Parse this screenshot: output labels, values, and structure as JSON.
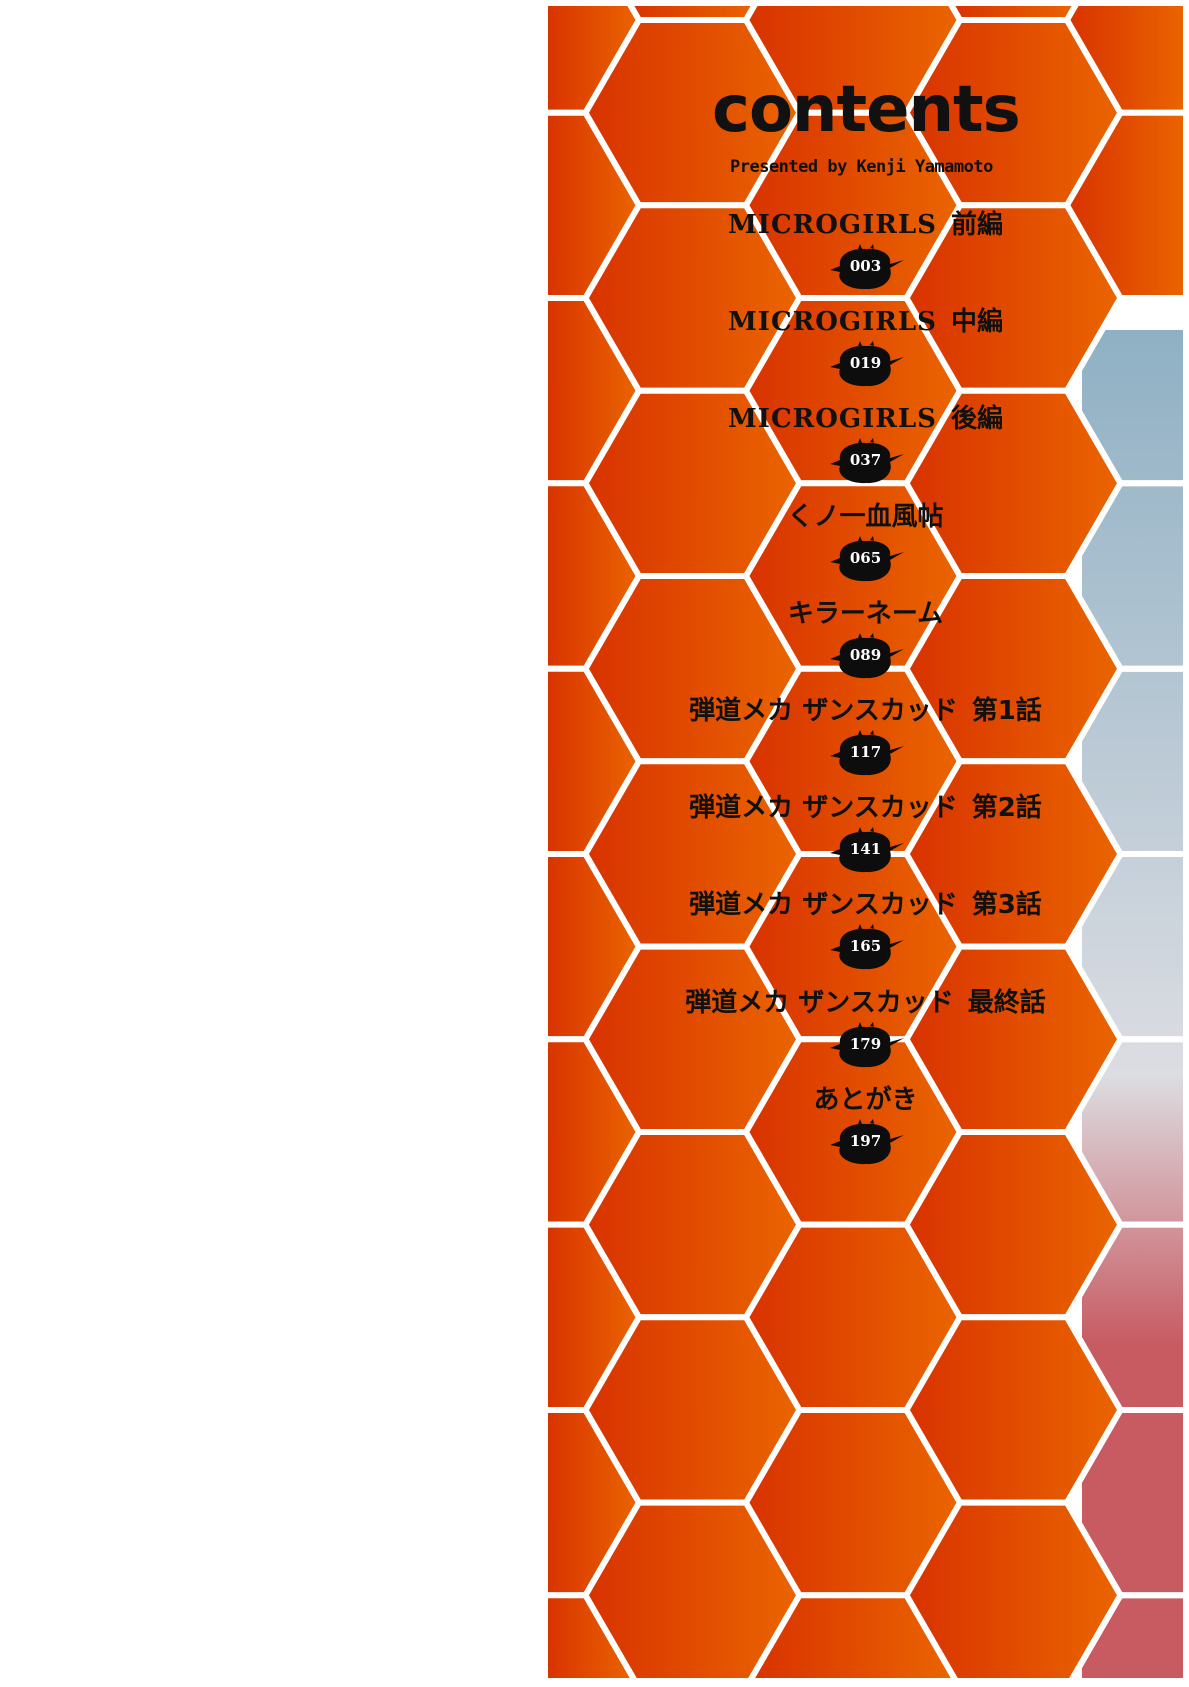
{
  "heading": "contents",
  "byline": "Presented by Kenji Yamamoto",
  "colors": {
    "orange_left": "#d83200",
    "orange_right": "#ea6500",
    "hex_lines": "#ffffff",
    "blot": "#0d0d0d",
    "art_blue": "#8fb0c4",
    "art_pink": "#c85a62"
  },
  "entries": [
    {
      "title": "MICROGIRLS",
      "suffix": "前編",
      "page": "003"
    },
    {
      "title": "MICROGIRLS",
      "suffix": "中編",
      "page": "019"
    },
    {
      "title": "MICROGIRLS",
      "suffix": "後編",
      "page": "037"
    },
    {
      "title": "くノ一血風帖",
      "suffix": "",
      "page": "065"
    },
    {
      "title": "キラーネーム",
      "suffix": "",
      "page": "089"
    },
    {
      "title": "弾道メカ ザンスカッド",
      "suffix": "第1話",
      "page": "117"
    },
    {
      "title": "弾道メカ ザンスカッド",
      "suffix": "第2話",
      "page": "141"
    },
    {
      "title": "弾道メカ ザンスカッド",
      "suffix": "第3話",
      "page": "165"
    },
    {
      "title": "弾道メカ ザンスカッド",
      "suffix": "最終話",
      "page": "179"
    },
    {
      "title": "あとがき",
      "suffix": "",
      "page": "197"
    }
  ]
}
